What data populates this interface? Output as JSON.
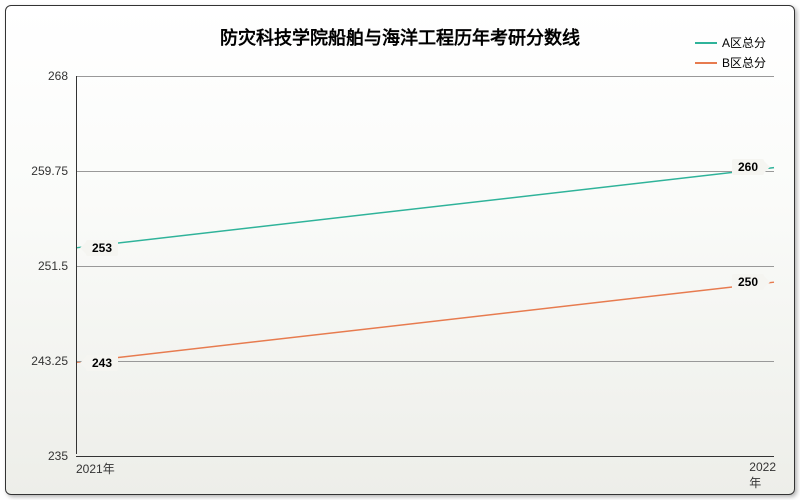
{
  "chart": {
    "type": "line",
    "title": "防灾科技学院船舶与海洋工程历年考研分数线",
    "title_fontsize": 18,
    "background_color": "#ffffff",
    "plot_background_gradient": [
      "#ffffff",
      "#edeee9"
    ],
    "border_color": "#333333",
    "x": {
      "categories": [
        "2021年",
        "2022年"
      ],
      "label_fontsize": 12
    },
    "y": {
      "min": 235,
      "max": 268,
      "ticks": [
        235,
        243.25,
        251.5,
        259.75,
        268
      ],
      "tick_labels": [
        "235",
        "243.25",
        "251.5",
        "259.75",
        "268"
      ],
      "label_fontsize": 12,
      "grid_color": "#999999"
    },
    "series": [
      {
        "name": "A区总分",
        "color": "#2fb39a",
        "line_width": 1.5,
        "values": [
          253,
          260
        ],
        "value_labels": [
          "253",
          "260"
        ]
      },
      {
        "name": "B区总分",
        "color": "#e77b4f",
        "line_width": 1.5,
        "values": [
          243,
          250
        ],
        "value_labels": [
          "243",
          "250"
        ]
      }
    ],
    "legend": {
      "position": "top-right",
      "fontsize": 12
    }
  }
}
